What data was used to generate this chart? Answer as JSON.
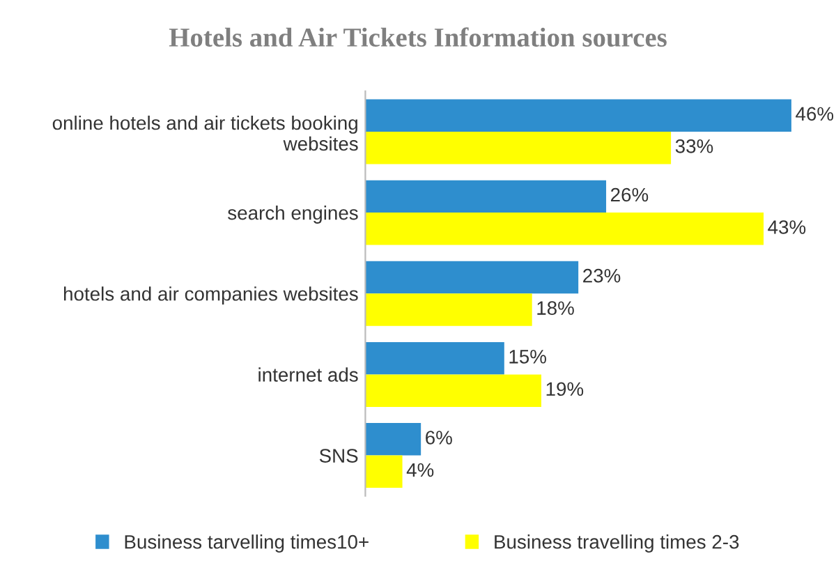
{
  "chart_data": {
    "type": "bar",
    "orientation": "horizontal",
    "title": "Hotels and Air Tickets Information sources",
    "categories": [
      "online hotels and air tickets booking\nwebsites",
      "search engines",
      "hotels and air companies websites",
      "internet ads",
      "SNS"
    ],
    "series": [
      {
        "name": "Business tarvelling times10+",
        "color": "#2e8ece",
        "values": [
          46,
          26,
          23,
          15,
          6
        ],
        "value_labels": [
          "46%",
          "26%",
          "23%",
          "15%",
          "6%"
        ]
      },
      {
        "name": "Business travelling times 2-3",
        "color": "#ffff00",
        "values": [
          33,
          43,
          18,
          19,
          4
        ],
        "value_labels": [
          "33%",
          "43%",
          "18%",
          "19%",
          "4%"
        ]
      }
    ],
    "tick_labels": "y",
    "grid": false,
    "legend": "bottom"
  }
}
